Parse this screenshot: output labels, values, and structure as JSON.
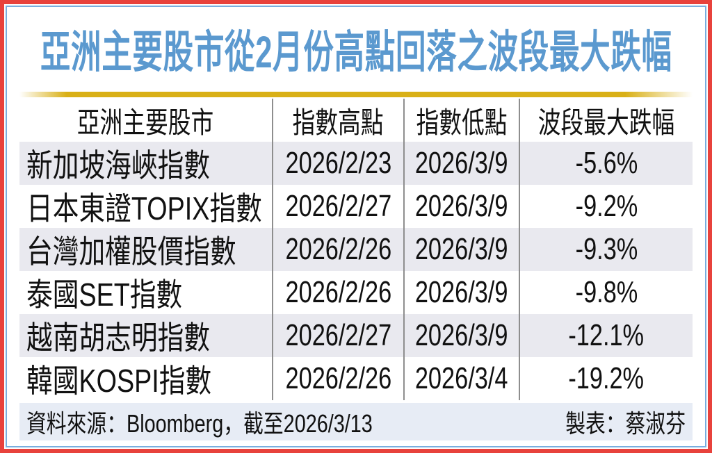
{
  "title": "亞洲主要股市從2月份高點回落之波段最大跌幅",
  "colors": {
    "frame_red": "#e8423c",
    "frame_blue": "#79aede",
    "title_blue": "#5b99cf",
    "divider_yellow": "#d9b016",
    "row_shade": "#e9e9ef",
    "footer_bg": "#e7ecf5",
    "grid_line": "#8e8e8e",
    "text": "#111111"
  },
  "table": {
    "headers": [
      "亞洲主要股市",
      "指數高點",
      "指數低點",
      "波段最大跌幅"
    ],
    "rows": [
      {
        "market": "新加坡海峽指數",
        "high": "2026/2/23",
        "low": "2026/3/9",
        "drop": "-5.6%"
      },
      {
        "market": "日本東證TOPIX指數",
        "high": "2026/2/27",
        "low": "2026/3/9",
        "drop": "-9.2%"
      },
      {
        "market": "台灣加權股價指數",
        "high": "2026/2/26",
        "low": "2026/3/9",
        "drop": "-9.3%"
      },
      {
        "market": "泰國SET指數",
        "high": "2026/2/26",
        "low": "2026/3/9",
        "drop": "-9.8%"
      },
      {
        "market": "越南胡志明指數",
        "high": "2026/2/27",
        "low": "2026/3/9",
        "drop": "-12.1%"
      },
      {
        "market": "韓國KOSPI指數",
        "high": "2026/2/26",
        "low": "2026/3/4",
        "drop": "-19.2%"
      }
    ]
  },
  "footer": {
    "source": "資料來源：Bloomberg，截至2026/3/13",
    "credit": "製表：蔡淑芬"
  },
  "chart_data": {
    "type": "table",
    "title": "亞洲主要股市從2月份高點回落之波段最大跌幅",
    "columns": [
      "亞洲主要股市",
      "指數高點",
      "指數低點",
      "波段最大跌幅"
    ],
    "rows": [
      [
        "新加坡海峽指數",
        "2026/2/23",
        "2026/3/9",
        "-5.6%"
      ],
      [
        "日本東證TOPIX指數",
        "2026/2/27",
        "2026/3/9",
        "-9.2%"
      ],
      [
        "台灣加權股價指數",
        "2026/2/26",
        "2026/3/9",
        "-9.3%"
      ],
      [
        "泰國SET指數",
        "2026/2/26",
        "2026/3/9",
        "-9.8%"
      ],
      [
        "越南胡志明指數",
        "2026/2/27",
        "2026/3/9",
        "-12.1%"
      ],
      [
        "韓國KOSPI指數",
        "2026/2/26",
        "2026/3/4",
        "-19.2%"
      ]
    ],
    "source_note": "資料來源：Bloomberg，截至2026/3/13",
    "credit": "製表：蔡淑芬"
  }
}
